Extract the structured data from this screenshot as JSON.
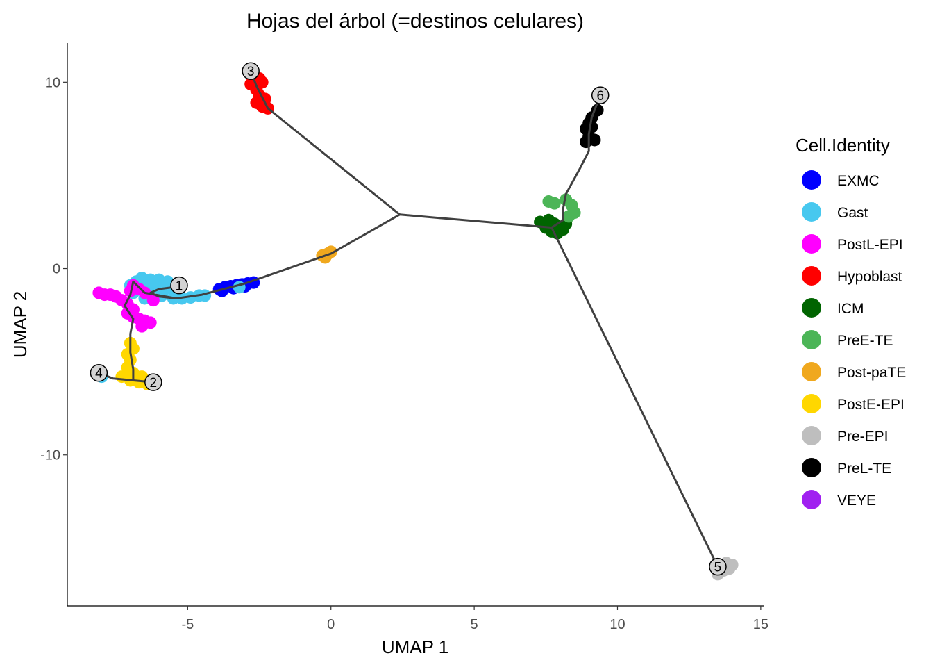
{
  "chart_data": {
    "type": "scatter",
    "title": "Hojas del árbol (=destinos celulares)",
    "xlabel": "UMAP 1",
    "ylabel": "UMAP 2",
    "xlim": [
      -9.2,
      15.1
    ],
    "ylim": [
      -18.1,
      12.1
    ],
    "x_ticks": [
      -5,
      0,
      5,
      10,
      15
    ],
    "y_ticks": [
      10,
      0,
      -10
    ],
    "x_tick_labels": [
      "-5",
      "0",
      "5",
      "10",
      "15"
    ],
    "y_tick_labels": [
      "10",
      "0",
      "-10"
    ],
    "grid": false,
    "legend": {
      "title": "Cell.Identity",
      "position": "right",
      "entries": [
        {
          "name": "EXMC",
          "color": "#0000FF"
        },
        {
          "name": "Gast",
          "color": "#47C8EF"
        },
        {
          "name": "PostL-EPI",
          "color": "#FF00FF"
        },
        {
          "name": "Hypoblast",
          "color": "#FF0000"
        },
        {
          "name": "ICM",
          "color": "#006400"
        },
        {
          "name": "PreE-TE",
          "color": "#4CB557"
        },
        {
          "name": "Post-paTE",
          "color": "#F0A81E"
        },
        {
          "name": "PostE-EPI",
          "color": "#FFD700"
        },
        {
          "name": "Pre-EPI",
          "color": "#BEBEBE"
        },
        {
          "name": "PreL-TE",
          "color": "#000000"
        },
        {
          "name": "VEYE",
          "color": "#A020F0"
        }
      ]
    },
    "clusters": [
      {
        "name": "EXMC",
        "points": [
          [
            -3.9,
            -1.1
          ],
          [
            -3.7,
            -1.0
          ],
          [
            -3.5,
            -0.95
          ],
          [
            -3.3,
            -0.9
          ],
          [
            -3.1,
            -0.85
          ],
          [
            -2.9,
            -0.8
          ],
          [
            -2.7,
            -0.75
          ],
          [
            -3.8,
            -1.2
          ],
          [
            -3.4,
            -1.05
          ],
          [
            -3.0,
            -0.95
          ]
        ]
      },
      {
        "name": "Gast",
        "points": [
          [
            -6.6,
            -0.5
          ],
          [
            -6.3,
            -0.6
          ],
          [
            -6.0,
            -0.6
          ],
          [
            -5.7,
            -0.7
          ],
          [
            -6.4,
            -0.9
          ],
          [
            -6.1,
            -1.0
          ],
          [
            -5.8,
            -1.1
          ],
          [
            -5.5,
            -1.2
          ],
          [
            -5.9,
            -1.45
          ],
          [
            -5.5,
            -1.6
          ],
          [
            -5.2,
            -1.6
          ],
          [
            -4.9,
            -1.55
          ],
          [
            -4.6,
            -1.45
          ],
          [
            -4.4,
            -1.45
          ],
          [
            -6.5,
            -1.6
          ],
          [
            -6.9,
            -1.3
          ],
          [
            -7.0,
            -0.9
          ],
          [
            -6.8,
            -0.7
          ],
          [
            -3.2,
            -1.0
          ],
          [
            -8.0,
            -5.8
          ]
        ]
      },
      {
        "name": "PostL-EPI",
        "points": [
          [
            -8.1,
            -1.3
          ],
          [
            -7.9,
            -1.4
          ],
          [
            -7.7,
            -1.4
          ],
          [
            -7.5,
            -1.5
          ],
          [
            -7.3,
            -1.7
          ],
          [
            -7.1,
            -1.9
          ],
          [
            -7.0,
            -1.2
          ],
          [
            -6.9,
            -0.9
          ],
          [
            -6.7,
            -1.1
          ],
          [
            -7.1,
            -2.4
          ],
          [
            -6.9,
            -2.6
          ],
          [
            -6.7,
            -2.7
          ],
          [
            -6.5,
            -2.8
          ],
          [
            -6.3,
            -2.9
          ],
          [
            -6.6,
            -3.1
          ],
          [
            -6.9,
            -2.2
          ],
          [
            -6.2,
            -1.7
          ],
          [
            -6.5,
            -1.3
          ]
        ]
      },
      {
        "name": "Hypoblast",
        "points": [
          [
            -2.7,
            10.4
          ],
          [
            -2.5,
            10.2
          ],
          [
            -2.4,
            10.0
          ],
          [
            -2.6,
            9.6
          ],
          [
            -2.5,
            9.3
          ],
          [
            -2.3,
            9.1
          ],
          [
            -2.6,
            8.9
          ],
          [
            -2.4,
            8.7
          ],
          [
            -2.2,
            8.6
          ],
          [
            -2.8,
            9.9
          ]
        ]
      },
      {
        "name": "ICM",
        "points": [
          [
            7.3,
            2.5
          ],
          [
            7.5,
            2.2
          ],
          [
            7.7,
            2.0
          ],
          [
            7.9,
            1.9
          ],
          [
            8.1,
            2.1
          ],
          [
            8.2,
            2.4
          ],
          [
            7.6,
            2.6
          ],
          [
            7.8,
            2.4
          ]
        ]
      },
      {
        "name": "PreE-TE",
        "points": [
          [
            7.6,
            3.6
          ],
          [
            7.8,
            3.5
          ],
          [
            8.2,
            3.7
          ],
          [
            8.4,
            3.4
          ],
          [
            8.5,
            3.0
          ],
          [
            8.3,
            2.8
          ]
        ]
      },
      {
        "name": "Post-paTE",
        "points": [
          [
            -0.3,
            0.7
          ],
          [
            -0.1,
            0.8
          ],
          [
            0.0,
            0.9
          ],
          [
            -0.2,
            0.6
          ]
        ]
      },
      {
        "name": "PostE-EPI",
        "points": [
          [
            -7.0,
            -4.0
          ],
          [
            -6.9,
            -4.3
          ],
          [
            -7.1,
            -4.6
          ],
          [
            -7.0,
            -4.9
          ],
          [
            -7.1,
            -5.3
          ],
          [
            -6.9,
            -5.6
          ],
          [
            -7.3,
            -5.8
          ],
          [
            -7.0,
            -6.0
          ],
          [
            -6.7,
            -6.1
          ],
          [
            -6.4,
            -6.2
          ],
          [
            -6.2,
            -6.0
          ],
          [
            -6.6,
            -5.8
          ]
        ]
      },
      {
        "name": "Pre-EPI",
        "points": [
          [
            13.5,
            -15.9
          ],
          [
            13.7,
            -16.2
          ],
          [
            13.9,
            -16.1
          ],
          [
            14.0,
            -15.9
          ],
          [
            13.5,
            -16.4
          ],
          [
            13.8,
            -15.8
          ]
        ]
      },
      {
        "name": "PreL-TE",
        "points": [
          [
            9.3,
            8.5
          ],
          [
            9.1,
            8.1
          ],
          [
            9.0,
            7.8
          ],
          [
            8.9,
            7.5
          ],
          [
            9.0,
            7.1
          ],
          [
            8.9,
            6.8
          ],
          [
            9.2,
            6.9
          ],
          [
            9.1,
            7.6
          ]
        ]
      }
    ],
    "trajectory": [
      {
        "name": "branch-to-1",
        "points": [
          [
            2.4,
            2.9
          ],
          [
            0.0,
            0.8
          ],
          [
            -3.0,
            -0.8
          ],
          [
            -4.5,
            -1.4
          ],
          [
            -5.4,
            -1.6
          ],
          [
            -6.0,
            -1.5
          ],
          [
            -6.3,
            -1.3
          ],
          [
            -6.0,
            -1.1
          ],
          [
            -5.5,
            -1.0
          ],
          [
            -5.3,
            -0.9
          ]
        ]
      },
      {
        "name": "branch-to-2-4",
        "points": [
          [
            -5.4,
            -1.6
          ],
          [
            -6.5,
            -1.3
          ],
          [
            -6.9,
            -0.7
          ],
          [
            -7.0,
            -1.4
          ],
          [
            -7.2,
            -2.0
          ],
          [
            -6.9,
            -2.7
          ],
          [
            -7.0,
            -3.5
          ],
          [
            -7.0,
            -4.5
          ],
          [
            -6.9,
            -5.4
          ],
          [
            -6.9,
            -6.0
          ],
          [
            -6.2,
            -6.1
          ]
        ]
      },
      {
        "name": "branch-to-4",
        "points": [
          [
            -6.9,
            -6.0
          ],
          [
            -7.6,
            -5.9
          ],
          [
            -8.1,
            -5.6
          ]
        ]
      },
      {
        "name": "branch-to-3",
        "points": [
          [
            2.4,
            2.9
          ],
          [
            -2.2,
            8.6
          ],
          [
            -2.6,
            9.8
          ],
          [
            -2.8,
            10.6
          ]
        ]
      },
      {
        "name": "central-edge",
        "points": [
          [
            2.4,
            2.9
          ],
          [
            7.7,
            2.2
          ]
        ]
      },
      {
        "name": "branch-to-6",
        "points": [
          [
            7.7,
            2.2
          ],
          [
            8.1,
            2.6
          ],
          [
            8.1,
            3.2
          ],
          [
            8.2,
            4.0
          ],
          [
            8.7,
            5.4
          ],
          [
            9.0,
            6.3
          ],
          [
            9.0,
            7.2
          ],
          [
            9.1,
            8.1
          ],
          [
            9.4,
            9.3
          ]
        ]
      },
      {
        "name": "branch-to-5",
        "points": [
          [
            7.7,
            2.2
          ],
          [
            13.5,
            -16.0
          ]
        ]
      }
    ],
    "leaf_nodes": [
      {
        "label": "1",
        "x": -5.3,
        "y": -0.9
      },
      {
        "label": "2",
        "x": -6.2,
        "y": -6.1
      },
      {
        "label": "3",
        "x": -2.8,
        "y": 10.6
      },
      {
        "label": "4",
        "x": -8.1,
        "y": -5.6
      },
      {
        "label": "5",
        "x": 13.5,
        "y": -16.0
      },
      {
        "label": "6",
        "x": 9.4,
        "y": 9.3
      }
    ]
  }
}
